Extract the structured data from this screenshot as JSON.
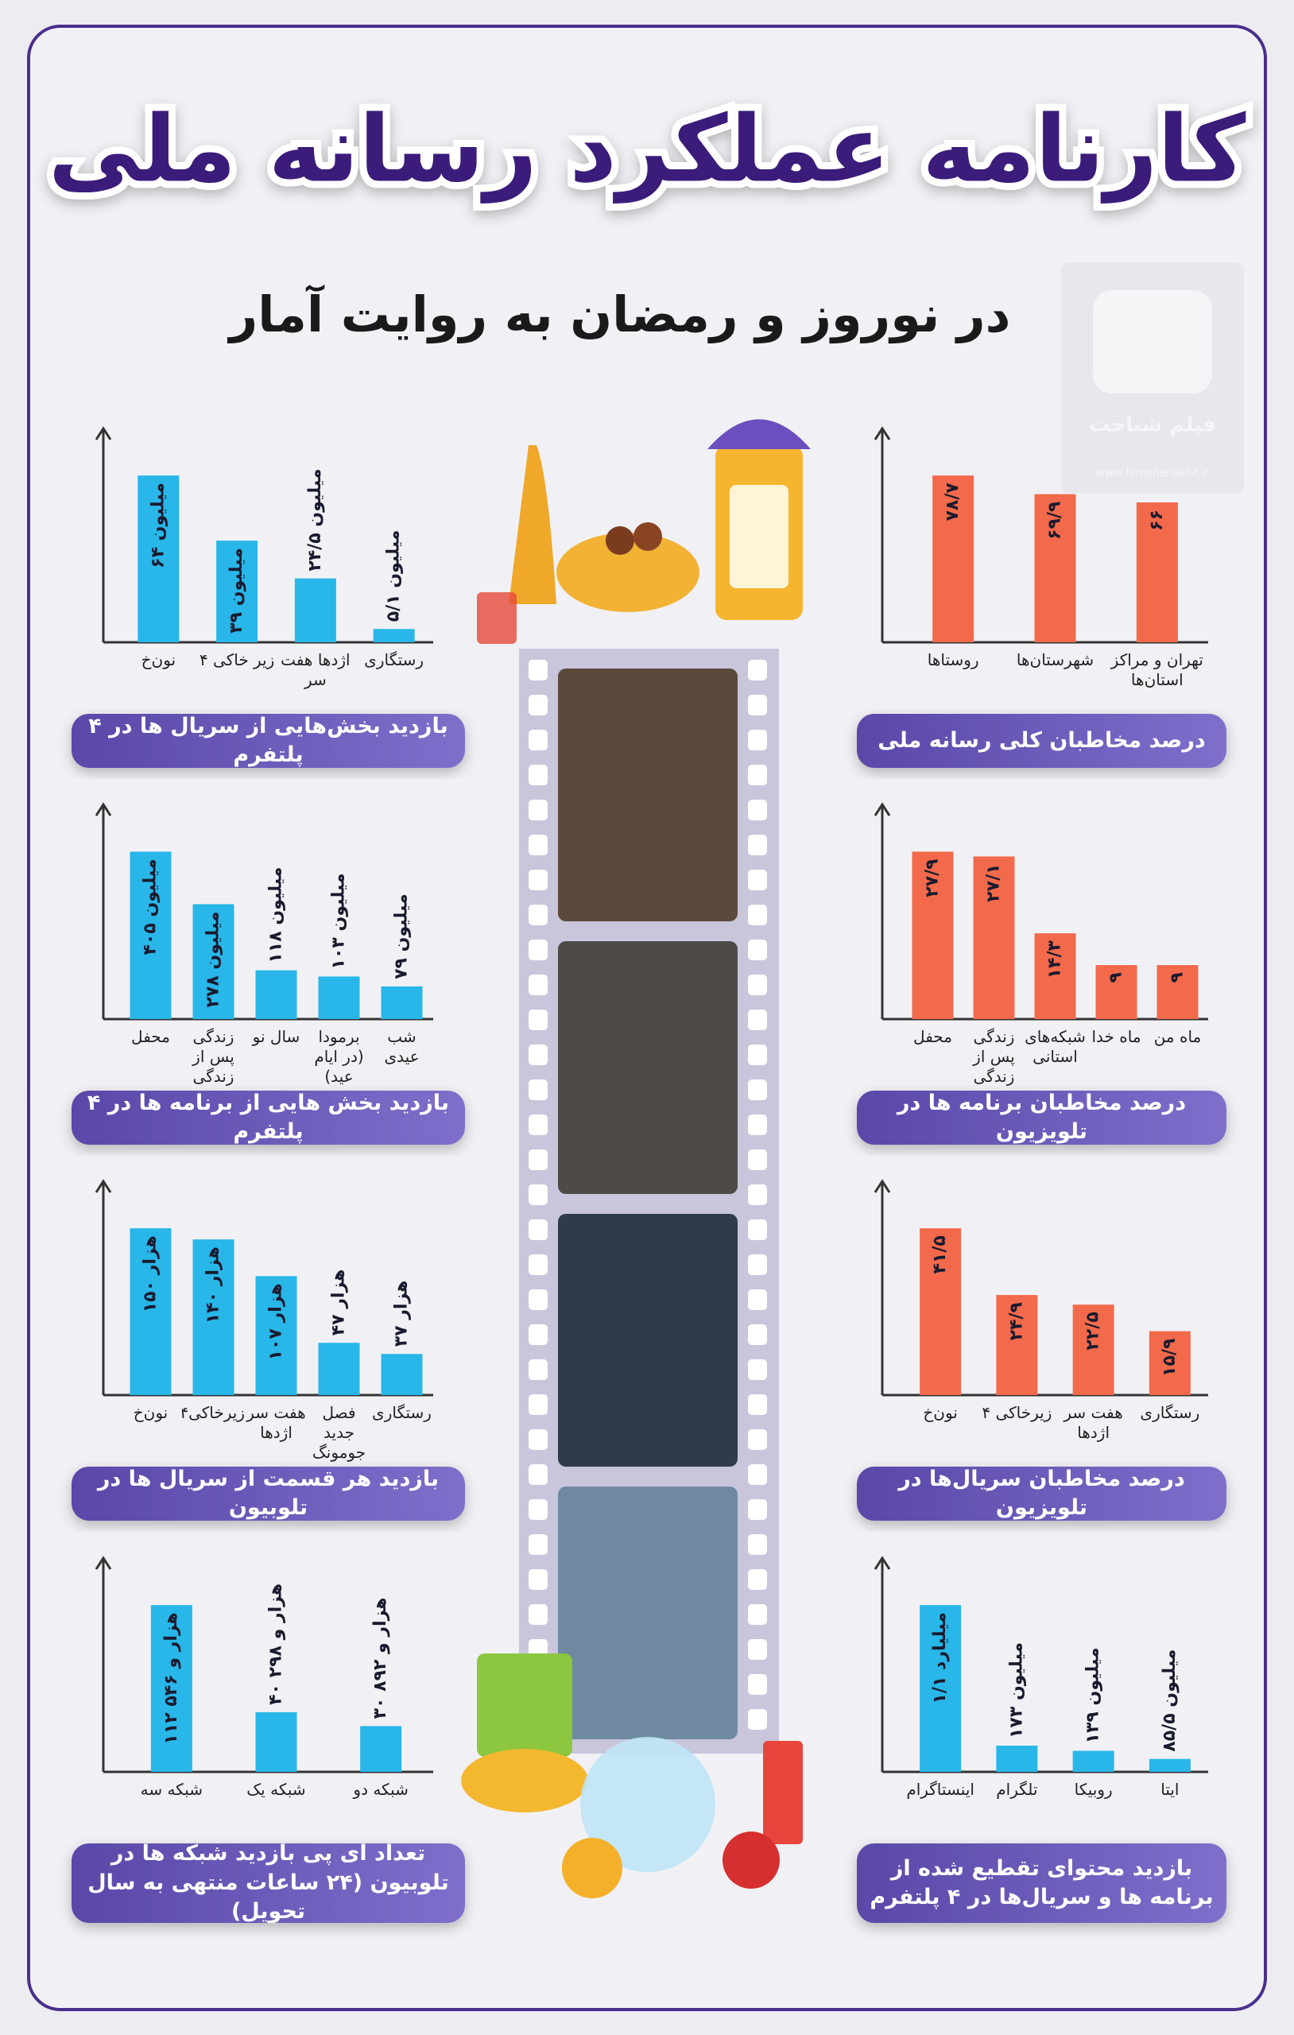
{
  "header": {
    "title": "کارنامه عملکرد رسانه ملی",
    "subtitle": "در نوروز و رمضان به روایت آمار"
  },
  "watermark": {
    "name": "فیلم شناخت",
    "url": "www.filmshenakht.ir"
  },
  "chart_data": [
    {
      "type": "bar",
      "title": "درصد مخاطبان کلی رسانه ملی",
      "color": "#f26a4b",
      "categories": [
        "روستاها",
        "شهرستان‌ها",
        "تهران و مراکز استان‌ها"
      ],
      "values": [
        78.7,
        69.9,
        66
      ],
      "value_labels": [
        "۷۸/۷",
        "۶۹/۹",
        "۶۶"
      ]
    },
    {
      "type": "bar",
      "title": "بازدید بخش‌هایی از سریال ها در ۴ پلتفرم",
      "color": "#29b6e8",
      "categories": [
        "نون‌خ",
        "زیر خاکی ۴",
        "اژدها هفت سر",
        "رستگاری"
      ],
      "values": [
        64,
        39,
        24.5,
        5.1
      ],
      "value_labels": [
        "۶۴ میلیون",
        "۳۹ میلیون",
        "۲۴/۵ میلیون",
        "۵/۱ میلیون"
      ]
    },
    {
      "type": "bar",
      "title": "درصد مخاطبان برنامه ها در تلویزیون",
      "color": "#f26a4b",
      "categories": [
        "محفل",
        "زندگی پس از زندگی",
        "شبکه‌های استانی",
        "ماه خدا",
        "ماه من"
      ],
      "values": [
        27.9,
        27.1,
        14.3,
        9,
        9
      ],
      "value_labels": [
        "۲۷/۹",
        "۲۷/۱",
        "۱۴/۳",
        "۹",
        "۹"
      ]
    },
    {
      "type": "bar",
      "title": "بازدید بخش هایی از برنامه ها در ۴ پلتفرم",
      "color": "#29b6e8",
      "categories": [
        "محفل",
        "زندگی پس از زندگی",
        "سال نو",
        "برمودا (در ایام عید)",
        "شب عیدی"
      ],
      "values": [
        405,
        278,
        118,
        103,
        79
      ],
      "value_labels": [
        "۴۰۵ میلیون",
        "۲۷۸ میلیون",
        "۱۱۸ میلیون",
        "۱۰۳ میلیون",
        "۷۹ میلیون"
      ]
    },
    {
      "type": "bar",
      "title": "درصد مخاطبان سریال‌ها در تلویزیون",
      "color": "#f26a4b",
      "categories": [
        "نون‌خ",
        "زیرخاکی ۴",
        "هفت سر اژدها",
        "رستگاری"
      ],
      "values": [
        41.5,
        24.9,
        22.5,
        15.9
      ],
      "value_labels": [
        "۴۱/۵",
        "۲۴/۹",
        "۲۲/۵",
        "۱۵/۹"
      ]
    },
    {
      "type": "bar",
      "title": "بازدید هر قسمت از سریال ها در تلوبیون",
      "color": "#29b6e8",
      "categories": [
        "نون‌خ",
        "زیرخاکی۴",
        "هفت سر اژدها",
        "فصل جدید جومونگ",
        "رستگاری"
      ],
      "values": [
        150,
        140,
        107,
        47,
        37
      ],
      "value_labels": [
        "۱۵۰ هزار",
        "۱۴۰ هزار",
        "۱۰۷ هزار",
        "۴۷ هزار",
        "۳۷ هزار"
      ]
    },
    {
      "type": "bar",
      "title": "بازدید محتوای تقطیع شده از برنامه ها و سریال‌ها در ۴ پلتفرم",
      "color": "#29b6e8",
      "categories": [
        "اینستاگرام",
        "تلگرام",
        "روبیکا",
        "ایتا"
      ],
      "values": [
        1100,
        173,
        139,
        85.5
      ],
      "value_labels": [
        "۱/۱ میلیارد",
        "۱۷۳ میلیون",
        "۱۳۹ میلیون",
        "۸۵/۵ میلیون"
      ]
    },
    {
      "type": "bar",
      "title": "تعداد آی پی بازدید شبکه ها در تلوبیون (۲۴ ساعات منتهی به سال تحویل)",
      "color": "#29b6e8",
      "categories": [
        "شبکه سه",
        "شبکه یک",
        "شبکه دو"
      ],
      "values": [
        112546,
        40298,
        30892
      ],
      "value_labels": [
        "۱۱۲ هزار و ۵۴۶",
        "۴۰ هزار و ۲۹۸",
        "۳۰ هزار و ۸۹۲"
      ]
    }
  ]
}
